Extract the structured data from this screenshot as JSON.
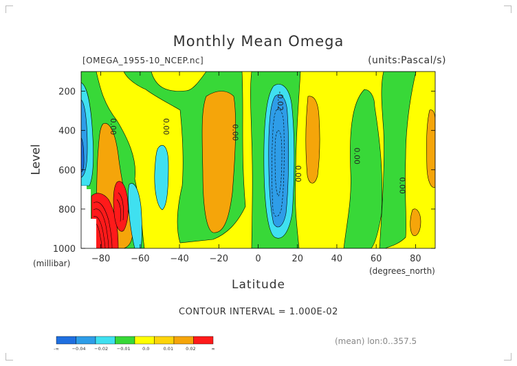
{
  "header": {
    "title": "Monthly Mean Omega",
    "file": "[OMEGA_1955-10_NCEP.nc]",
    "units": "(units:Pascal/s)"
  },
  "axes": {
    "ylabel": "Level",
    "yunit": "(millibar)",
    "xlabel": "Latitude",
    "xunit": "(degrees_north)"
  },
  "footer": {
    "interval": "CONTOUR INTERVAL = 1.000E-02",
    "mean_lon": "(mean) lon:0..357.5"
  },
  "colorbar": {
    "colors": [
      "#1f6fe0",
      "#2e9de8",
      "#3fe0f0",
      "#38d838",
      "#ffff00",
      "#fdd40a",
      "#f5a50a",
      "#ff1a1a"
    ],
    "labels": [
      "-∞",
      "−0.04",
      "−0.02",
      "−0.01",
      "0.0",
      "0.01",
      "0.02",
      "∞"
    ]
  },
  "chart_data": {
    "type": "heatmap",
    "title": "Monthly Mean Omega",
    "subtitle": "[OMEGA_1955-10_NCEP.nc]",
    "units": "Pascal/s",
    "xlabel": "Latitude",
    "xunit": "degrees_north",
    "ylabel": "Level",
    "yunit": "millibar",
    "xlim": [
      -90,
      90
    ],
    "ylim": [
      1000,
      100
    ],
    "x_ticks": [
      -80,
      -60,
      -40,
      -20,
      0,
      20,
      40,
      60,
      80
    ],
    "y_ticks": [
      200,
      400,
      600,
      800,
      1000
    ],
    "contour_interval": 0.01,
    "contour_labels": [
      {
        "x": -75,
        "y": 380,
        "text": "0.00"
      },
      {
        "x": -48,
        "y": 380,
        "text": "0.00"
      },
      {
        "x": -13,
        "y": 410,
        "text": "0.00"
      },
      {
        "x": 10,
        "y": 250,
        "text": "-0.02"
      },
      {
        "x": 19,
        "y": 620,
        "text": "0.00"
      },
      {
        "x": 49,
        "y": 530,
        "text": "0.00"
      },
      {
        "x": 72,
        "y": 680,
        "text": "0.00"
      }
    ],
    "regions": [
      {
        "name": "strong ascent band near 10N",
        "value": -0.03,
        "x_range": [
          5,
          16
        ],
        "y_range": [
          180,
          920
        ]
      },
      {
        "name": "strong ascent near 88S",
        "value": -0.02,
        "x_range": [
          -90,
          -85
        ],
        "y_range": [
          150,
          620
        ]
      },
      {
        "name": "ascent near 50S",
        "value": -0.015,
        "x_range": [
          -54,
          -45
        ],
        "y_range": [
          470,
          870
        ]
      },
      {
        "name": "ascent near 65S",
        "value": -0.015,
        "x_range": [
          -66,
          -61
        ],
        "y_range": [
          760,
          980
        ]
      },
      {
        "name": "strong descent near antarctic slope",
        "value": 0.03,
        "x_range": [
          -84,
          -67
        ],
        "y_range": [
          680,
          1000
        ]
      },
      {
        "name": "descent near 75S",
        "value": 0.015,
        "x_range": [
          -82,
          -62
        ],
        "y_range": [
          300,
          1000
        ]
      },
      {
        "name": "descent subtropics 25S",
        "value": 0.015,
        "x_range": [
          -32,
          -15
        ],
        "y_range": [
          150,
          880
        ]
      },
      {
        "name": "descent 25N",
        "value": 0.015,
        "x_range": [
          23,
          30
        ],
        "y_range": [
          180,
          720
        ]
      },
      {
        "name": "descent 85N",
        "value": 0.015,
        "x_range": [
          84,
          90
        ],
        "y_range": [
          300,
          680
        ]
      }
    ],
    "grid": false
  }
}
